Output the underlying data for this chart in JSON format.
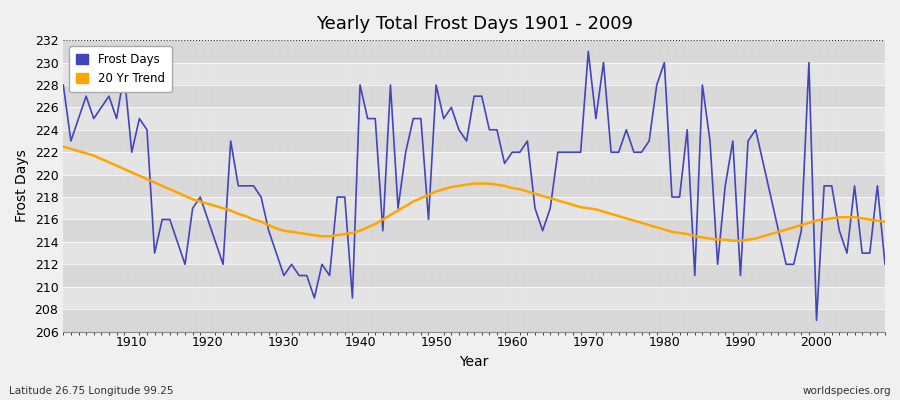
{
  "title": "Yearly Total Frost Days 1901 - 2009",
  "xlabel": "Year",
  "ylabel": "Frost Days",
  "footnote_left": "Latitude 26.75 Longitude 99.25",
  "footnote_right": "worldspecies.org",
  "legend_frost": "Frost Days",
  "legend_trend": "20 Yr Trend",
  "ylim": [
    206,
    232
  ],
  "yticks": [
    206,
    208,
    210,
    212,
    214,
    216,
    218,
    220,
    222,
    224,
    226,
    228,
    230,
    232
  ],
  "xlim": [
    1901,
    2009
  ],
  "xticks": [
    1910,
    1920,
    1930,
    1940,
    1950,
    1960,
    1970,
    1980,
    1990,
    2000
  ],
  "frost_color": "#4444bb",
  "trend_color": "#FFA500",
  "bg_color": "#f0f0f0",
  "plot_bg_color": "#e8e8e8",
  "band_color_light": "#e8e8e8",
  "band_color_dark": "#d8d8d8",
  "frost_years": [
    1901,
    1902,
    1903,
    1904,
    1905,
    1906,
    1907,
    1908,
    1909,
    1910,
    1911,
    1912,
    1913,
    1914,
    1915,
    1916,
    1917,
    1918,
    1919,
    1920,
    1921,
    1922,
    1923,
    1924,
    1925,
    1926,
    1927,
    1928,
    1929,
    1930,
    1931,
    1932,
    1933,
    1934,
    1935,
    1936,
    1937,
    1938,
    1939,
    1940,
    1941,
    1942,
    1943,
    1944,
    1945,
    1946,
    1947,
    1948,
    1949,
    1950,
    1951,
    1952,
    1953,
    1954,
    1955,
    1956,
    1957,
    1958,
    1959,
    1960,
    1961,
    1962,
    1963,
    1964,
    1965,
    1966,
    1967,
    1968,
    1969,
    1970,
    1971,
    1972,
    1973,
    1974,
    1975,
    1976,
    1977,
    1978,
    1979,
    1980,
    1981,
    1982,
    1983,
    1984,
    1985,
    1986,
    1987,
    1988,
    1989,
    1990,
    1991,
    1992,
    1993,
    1994,
    1995,
    1996,
    1997,
    1998,
    1999,
    2000,
    2001,
    2002,
    2003,
    2004,
    2005,
    2006,
    2007,
    2008,
    2009
  ],
  "frost_values": [
    228,
    223,
    225,
    227,
    225,
    226,
    227,
    225,
    229,
    222,
    225,
    224,
    213,
    216,
    216,
    214,
    212,
    217,
    218,
    216,
    214,
    212,
    223,
    219,
    219,
    219,
    218,
    215,
    213,
    211,
    212,
    211,
    211,
    209,
    212,
    211,
    218,
    218,
    209,
    228,
    225,
    225,
    215,
    228,
    217,
    222,
    225,
    225,
    216,
    228,
    225,
    226,
    224,
    223,
    227,
    227,
    224,
    224,
    221,
    222,
    222,
    223,
    217,
    215,
    217,
    222,
    222,
    222,
    222,
    231,
    225,
    230,
    222,
    222,
    224,
    222,
    222,
    223,
    228,
    230,
    218,
    218,
    224,
    211,
    228,
    223,
    212,
    219,
    223,
    211,
    223,
    224,
    221,
    218,
    215,
    212,
    212,
    215,
    230,
    207,
    219,
    219,
    215,
    213,
    219,
    213,
    213,
    219,
    212
  ],
  "trend_years": [
    1901,
    1902,
    1903,
    1904,
    1905,
    1906,
    1907,
    1908,
    1909,
    1910,
    1911,
    1912,
    1913,
    1914,
    1915,
    1916,
    1917,
    1918,
    1919,
    1920,
    1921,
    1922,
    1923,
    1924,
    1925,
    1926,
    1927,
    1928,
    1929,
    1930,
    1931,
    1932,
    1933,
    1934,
    1935,
    1936,
    1937,
    1938,
    1939,
    1940,
    1941,
    1942,
    1943,
    1944,
    1945,
    1946,
    1947,
    1948,
    1949,
    1950,
    1951,
    1952,
    1953,
    1954,
    1955,
    1956,
    1957,
    1958,
    1959,
    1960,
    1961,
    1962,
    1963,
    1964,
    1965,
    1966,
    1967,
    1968,
    1969,
    1970,
    1971,
    1972,
    1973,
    1974,
    1975,
    1976,
    1977,
    1978,
    1979,
    1980,
    1981,
    1982,
    1983,
    1984,
    1985,
    1986,
    1987,
    1988,
    1989,
    1990,
    1991,
    1992,
    1993,
    1994,
    1995,
    1996,
    1997,
    1998,
    1999,
    2000,
    2001,
    2002,
    2003,
    2004,
    2005,
    2006,
    2007,
    2008,
    2009
  ],
  "trend_values": [
    222.5,
    222.3,
    222.1,
    221.9,
    221.7,
    221.4,
    221.1,
    220.8,
    220.5,
    220.2,
    219.9,
    219.6,
    219.3,
    219.0,
    218.7,
    218.4,
    218.1,
    217.8,
    217.6,
    217.4,
    217.2,
    217.0,
    216.8,
    216.5,
    216.3,
    216.0,
    215.8,
    215.5,
    215.2,
    215.0,
    214.9,
    214.8,
    214.7,
    214.6,
    214.5,
    214.5,
    214.6,
    214.7,
    214.8,
    215.0,
    215.3,
    215.6,
    216.0,
    216.4,
    216.8,
    217.2,
    217.6,
    217.9,
    218.2,
    218.5,
    218.7,
    218.9,
    219.0,
    219.1,
    219.2,
    219.2,
    219.2,
    219.1,
    219.0,
    218.8,
    218.7,
    218.5,
    218.3,
    218.1,
    217.9,
    217.7,
    217.5,
    217.3,
    217.1,
    217.0,
    216.9,
    216.7,
    216.5,
    216.3,
    216.1,
    215.9,
    215.7,
    215.5,
    215.3,
    215.1,
    214.9,
    214.8,
    214.7,
    214.5,
    214.4,
    214.3,
    214.2,
    214.2,
    214.1,
    214.1,
    214.2,
    214.3,
    214.5,
    214.7,
    214.9,
    215.1,
    215.3,
    215.5,
    215.7,
    215.9,
    216.0,
    216.1,
    216.2,
    216.2,
    216.2,
    216.1,
    216.0,
    215.9,
    215.8
  ]
}
